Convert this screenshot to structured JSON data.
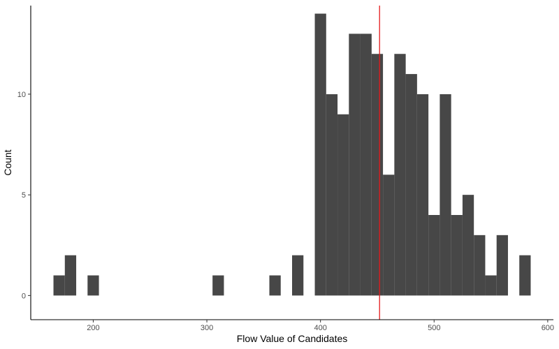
{
  "chart_data": {
    "type": "bar",
    "subtype": "histogram",
    "xlabel": "Flow Value of Candidates",
    "ylabel": "Count",
    "bin_width": 10,
    "xlim": [
      145,
      605
    ],
    "ylim": [
      -1.2,
      14.4
    ],
    "x_ticks": [
      200,
      300,
      400,
      500,
      600
    ],
    "y_ticks": [
      0,
      5,
      10
    ],
    "bins": [
      {
        "x0": 165,
        "x1": 175,
        "count": 1
      },
      {
        "x0": 175,
        "x1": 185,
        "count": 2
      },
      {
        "x0": 195,
        "x1": 205,
        "count": 1
      },
      {
        "x0": 305,
        "x1": 315,
        "count": 1
      },
      {
        "x0": 355,
        "x1": 365,
        "count": 1
      },
      {
        "x0": 375,
        "x1": 385,
        "count": 2
      },
      {
        "x0": 395,
        "x1": 405,
        "count": 14
      },
      {
        "x0": 405,
        "x1": 415,
        "count": 10
      },
      {
        "x0": 415,
        "x1": 425,
        "count": 9
      },
      {
        "x0": 425,
        "x1": 435,
        "count": 13
      },
      {
        "x0": 435,
        "x1": 445,
        "count": 13
      },
      {
        "x0": 445,
        "x1": 455,
        "count": 12
      },
      {
        "x0": 455,
        "x1": 465,
        "count": 6
      },
      {
        "x0": 465,
        "x1": 475,
        "count": 12
      },
      {
        "x0": 475,
        "x1": 485,
        "count": 11
      },
      {
        "x0": 485,
        "x1": 495,
        "count": 10
      },
      {
        "x0": 495,
        "x1": 505,
        "count": 4
      },
      {
        "x0": 505,
        "x1": 515,
        "count": 10
      },
      {
        "x0": 515,
        "x1": 525,
        "count": 4
      },
      {
        "x0": 525,
        "x1": 535,
        "count": 5
      },
      {
        "x0": 535,
        "x1": 545,
        "count": 3
      },
      {
        "x0": 545,
        "x1": 555,
        "count": 1
      },
      {
        "x0": 555,
        "x1": 565,
        "count": 3
      },
      {
        "x0": 575,
        "x1": 585,
        "count": 2
      }
    ],
    "reference_line": {
      "x": 452,
      "color": "#e41a1c"
    },
    "bar_color": "#474747",
    "grid": false,
    "legend": "none"
  }
}
